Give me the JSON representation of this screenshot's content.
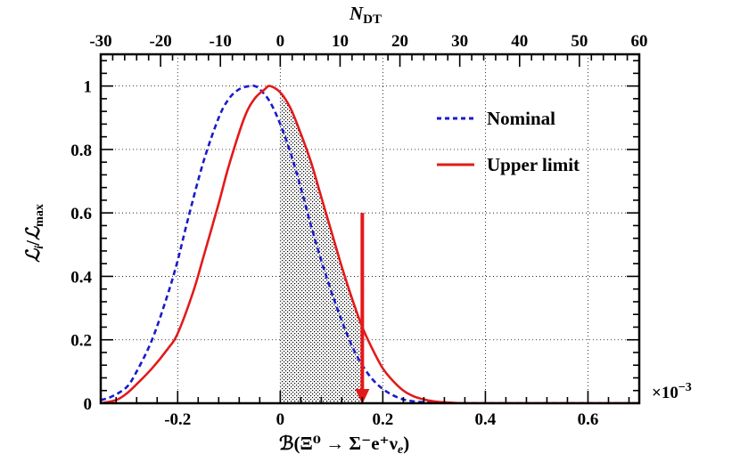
{
  "chart_data": {
    "type": "line",
    "bottom_axis": {
      "label": "ℬ(Ξ⁰ → Σ⁻e⁺ν",
      "label_sub": "e",
      "label_close": ")",
      "range": [
        -0.35,
        0.7
      ],
      "ticks": [
        -0.2,
        0,
        0.2,
        0.4,
        0.6
      ],
      "tick_labels": [
        "-0.2",
        "0",
        "0.2",
        "0.4",
        "0.6"
      ],
      "exponent_base": "×10",
      "exponent_power": "−3"
    },
    "top_axis": {
      "label_main": "N",
      "label_sub": "DT",
      "range": [
        -30,
        60
      ],
      "ticks": [
        -30,
        -20,
        -10,
        0,
        10,
        20,
        30,
        40,
        50,
        60
      ],
      "tick_labels": [
        "-30",
        "-20",
        "-10",
        "0",
        "10",
        "20",
        "30",
        "40",
        "50",
        "60"
      ]
    },
    "y_axis": {
      "label_main": "ℒ",
      "label_sub_num": "i",
      "label_div": "/",
      "label_main2": "ℒ",
      "label_sub_den": "max",
      "range": [
        0,
        1.1
      ],
      "ticks": [
        0,
        0.2,
        0.4,
        0.6,
        0.8,
        1
      ],
      "tick_labels": [
        "0",
        "0.2",
        "0.4",
        "0.6",
        "0.8",
        "1"
      ]
    },
    "grid": true,
    "series": [
      {
        "name": "Nominal",
        "color": "#1a1acc",
        "style": "dashed",
        "x": [
          -0.35,
          -0.33,
          -0.3,
          -0.28,
          -0.25,
          -0.22,
          -0.2,
          -0.18,
          -0.15,
          -0.12,
          -0.1,
          -0.08,
          -0.06,
          -0.05,
          -0.04,
          -0.02,
          0,
          0.02,
          0.04,
          0.06,
          0.08,
          0.1,
          0.12,
          0.14,
          0.16,
          0.18,
          0.2,
          0.22,
          0.24,
          0.26,
          0.28,
          0.3,
          0.32,
          0.35,
          0.4,
          0.5,
          0.7
        ],
        "y": [
          0.01,
          0.02,
          0.05,
          0.1,
          0.2,
          0.34,
          0.45,
          0.58,
          0.76,
          0.9,
          0.96,
          0.99,
          1.0,
          1.0,
          0.99,
          0.95,
          0.88,
          0.79,
          0.68,
          0.56,
          0.45,
          0.35,
          0.26,
          0.18,
          0.12,
          0.075,
          0.045,
          0.025,
          0.012,
          0.006,
          0.003,
          0.001,
          0.0,
          0.0,
          0.0,
          0.0,
          0.0
        ]
      },
      {
        "name": "Upper limit",
        "color": "#e31a1a",
        "style": "solid",
        "x": [
          -0.35,
          -0.32,
          -0.3,
          -0.28,
          -0.25,
          -0.22,
          -0.2,
          -0.17,
          -0.15,
          -0.12,
          -0.1,
          -0.07,
          -0.05,
          -0.03,
          -0.02,
          0,
          0.02,
          0.04,
          0.06,
          0.08,
          0.1,
          0.12,
          0.14,
          0.16,
          0.18,
          0.2,
          0.22,
          0.24,
          0.26,
          0.28,
          0.3,
          0.33,
          0.36,
          0.4,
          0.5,
          0.7
        ],
        "y": [
          0.0,
          0.01,
          0.03,
          0.06,
          0.11,
          0.17,
          0.22,
          0.35,
          0.46,
          0.63,
          0.75,
          0.9,
          0.96,
          0.99,
          1.0,
          0.98,
          0.93,
          0.85,
          0.76,
          0.65,
          0.54,
          0.43,
          0.33,
          0.24,
          0.17,
          0.11,
          0.07,
          0.04,
          0.022,
          0.012,
          0.006,
          0.002,
          0.0,
          0.0,
          0.0,
          0.0
        ]
      }
    ],
    "shaded_region": {
      "x_from": 0,
      "x_to": 0.16,
      "under_series": "Upper limit"
    },
    "arrow": {
      "x": 0.16,
      "y_from": 0.6,
      "y_to": 0.0,
      "color": "#e31a1a"
    }
  }
}
